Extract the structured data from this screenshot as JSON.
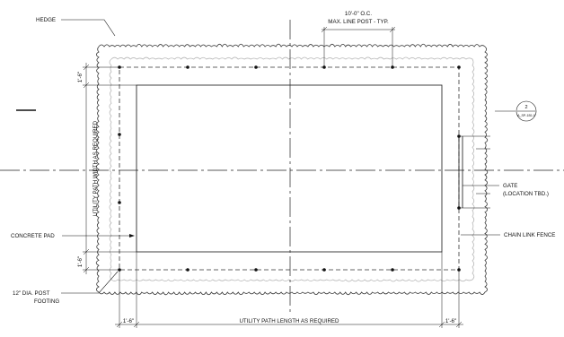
{
  "labels": {
    "hedge": "HEDGE",
    "spacing_line1": "10'-0\" O.C.",
    "spacing_line2": "MAX. LINE POST - TYP.",
    "utility_width": "UTILITY PATH WIDTH AS REQUIRED",
    "gate_line1": "GATE",
    "gate_line2": "(LOCATION TBD.)",
    "concrete_pad": "CONCRETE PAD",
    "chain_link_fence": "CHAIN LINK FENCE",
    "post_footing_line1": "12\" DIA. POST",
    "post_footing_line2": "FOOTING",
    "utility_length": "UTILITY PATH LENGTH AS REQUIRED"
  },
  "dimensions": {
    "top_offset": "1'-6\"",
    "bottom_offset": "1'-6\"",
    "left_offset": "1'-6\"",
    "right_offset": "1'-6\""
  },
  "section_marker": {
    "number": "2",
    "sheet": "A_SP-1B1.0"
  }
}
